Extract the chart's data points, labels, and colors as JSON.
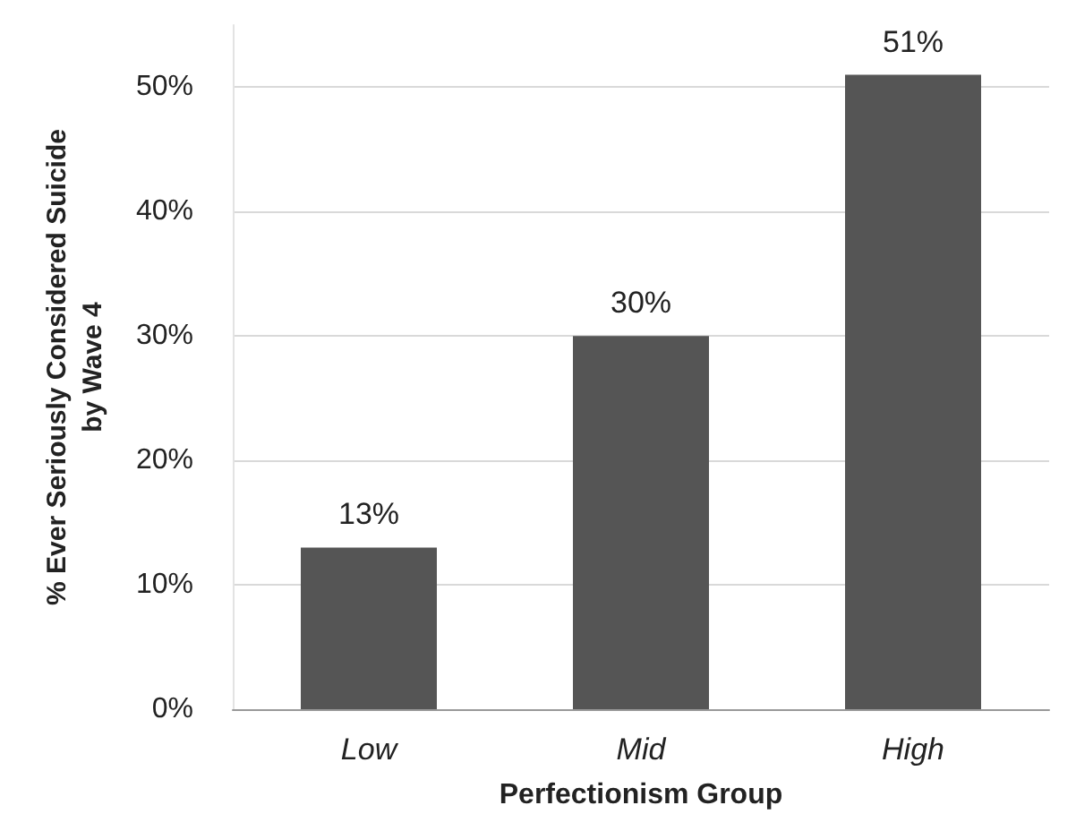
{
  "chart_data": {
    "type": "bar",
    "xlabel": "Perfectionism Group",
    "ylabel": "% Ever Seriously Considered Suicide\nby Wave 4",
    "categories": [
      "Low",
      "Mid",
      "High"
    ],
    "values": [
      13,
      30,
      51
    ],
    "color": "#555555",
    "value_labels": [
      "13%",
      "30%",
      "51%"
    ],
    "ylim": [
      0,
      55
    ],
    "yticks": [
      {
        "value": 0,
        "label": "0%"
      },
      {
        "value": 10,
        "label": "10%"
      },
      {
        "value": 20,
        "label": "20%"
      },
      {
        "value": 30,
        "label": "30%"
      },
      {
        "value": 40,
        "label": "40%"
      },
      {
        "value": 50,
        "label": "50%"
      }
    ],
    "grid": "y"
  }
}
